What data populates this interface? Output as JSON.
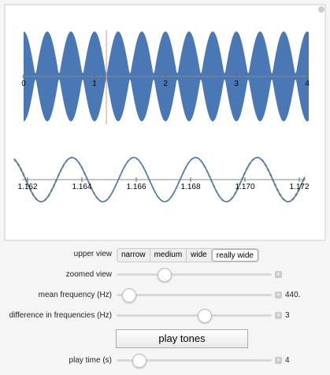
{
  "upper_plot": {
    "xlim": [
      0,
      4.02
    ],
    "xticks": [
      0,
      1,
      2,
      3,
      4
    ],
    "marker": 1.167,
    "wave_color": "#4a78b5",
    "marker_color": "#f2a0a0"
  },
  "lower_plot": {
    "xlim": [
      1.1615,
      1.1722
    ],
    "xticks": [
      1.162,
      1.164,
      1.166,
      1.168,
      {
        "value": 1.17,
        "label": "1.170"
      },
      1.172
    ],
    "colors": [
      "#e8a030",
      "#8fae3a",
      "#4a78b5"
    ]
  },
  "upper_view": {
    "label": "upper view",
    "options": [
      "narrow",
      "medium",
      "wide",
      "really wide"
    ],
    "selected": 3
  },
  "zoomed_view": {
    "label": "zoomed view"
  },
  "mean_frequency": {
    "label": "mean frequency (Hz)",
    "value": 440,
    "value_label": "440."
  },
  "difference": {
    "label": "difference in frequencies (Hz)",
    "value": 3
  },
  "button": "play tones",
  "play_time": {
    "label": "play time (s)",
    "value": 4
  }
}
